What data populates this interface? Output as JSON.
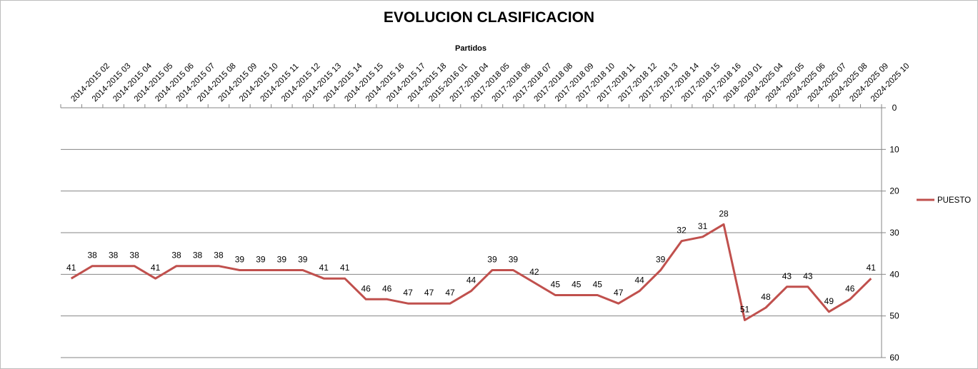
{
  "chart_data": {
    "type": "line",
    "title": "EVOLUCION CLASIFICACION",
    "xlabel": "Partidos",
    "ylabel": "",
    "y_reversed": true,
    "ylim": [
      0,
      60
    ],
    "yticks": [
      0,
      10,
      20,
      30,
      40,
      50,
      60
    ],
    "x_axis_position": "top",
    "y_axis_position": "right",
    "grid": "horizontal",
    "legend_position": "right",
    "categories": [
      "2014-2015 02",
      "2014-2015 03",
      "2014-2015 04",
      "2014-2015 05",
      "2014-2015 06",
      "2014-2015 07",
      "2014-2015 08",
      "2014-2015 09",
      "2014-2015 10",
      "2014-2015 11",
      "2014-2015 12",
      "2014-2015 13",
      "2014-2015 14",
      "2014-2015 15",
      "2014-2015 16",
      "2014-2015 17",
      "2014-2015 18",
      "2015-2016 01",
      "2017-2018 04",
      "2017-2018 05",
      "2017-2018 06",
      "2017-2018 07",
      "2017-2018 08",
      "2017-2018 09",
      "2017-2018 10",
      "2017-2018 11",
      "2017-2018 12",
      "2017-2018 13",
      "2017-2018 14",
      "2017-2018 15",
      "2017-2018 16",
      "2018-2019 01",
      "2024-2025 04",
      "2024-2025 05",
      "2024-2025 06",
      "2024-2025 07",
      "2024-2025 08",
      "2024-2025 09",
      "2024-2025 10"
    ],
    "series": [
      {
        "name": "PUESTO",
        "color": "#c0504d",
        "values": [
          41,
          38,
          38,
          38,
          41,
          38,
          38,
          38,
          39,
          39,
          39,
          39,
          41,
          41,
          46,
          46,
          47,
          47,
          47,
          44,
          39,
          39,
          42,
          45,
          45,
          45,
          47,
          44,
          39,
          32,
          31,
          28,
          51,
          48,
          43,
          43,
          49,
          46,
          41
        ]
      }
    ]
  }
}
